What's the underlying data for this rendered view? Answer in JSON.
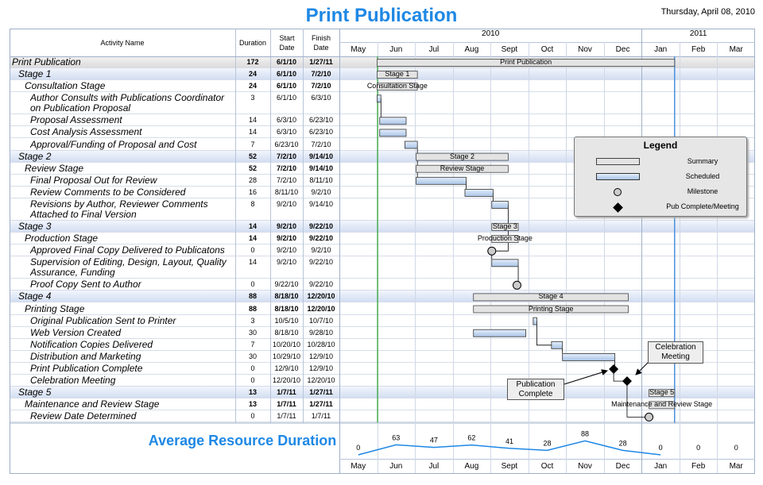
{
  "header": {
    "title": "Print Publication",
    "date": "Thursday, April 08, 2010"
  },
  "columns": {
    "name": "Activity Name",
    "duration": "Duration",
    "start": "Start Date",
    "finish": "Finish Date"
  },
  "timescale": {
    "years": [
      "2010",
      "2011"
    ],
    "months": [
      "May",
      "Jun",
      "Jul",
      "Aug",
      "Sept",
      "Oct",
      "Nov",
      "Dec",
      "Jan",
      "Feb",
      "Mar"
    ]
  },
  "tasks": [
    {
      "name": "Print Publication",
      "duration": 172,
      "start": "6/1/10",
      "finish": "1/27/11"
    },
    {
      "name": "Stage 1",
      "duration": 24,
      "start": "6/1/10",
      "finish": "7/2/10"
    },
    {
      "name": "Consultation Stage",
      "duration": 24,
      "start": "6/1/10",
      "finish": "7/2/10"
    },
    {
      "name": "Author Consults with Publications Coordinator on Publication Proposal",
      "duration": 3,
      "start": "6/1/10",
      "finish": "6/3/10"
    },
    {
      "name": "Proposal Assessment",
      "duration": 14,
      "start": "6/3/10",
      "finish": "6/23/10"
    },
    {
      "name": "Cost Analysis Assessment",
      "duration": 14,
      "start": "6/3/10",
      "finish": "6/23/10"
    },
    {
      "name": "Approval/Funding of Proposal and Cost",
      "duration": 7,
      "start": "6/23/10",
      "finish": "7/2/10"
    },
    {
      "name": "Stage 2",
      "duration": 52,
      "start": "7/2/10",
      "finish": "9/14/10"
    },
    {
      "name": "Review Stage",
      "duration": 52,
      "start": "7/2/10",
      "finish": "9/14/10"
    },
    {
      "name": "Final Proposal Out for Review",
      "duration": 28,
      "start": "7/2/10",
      "finish": "8/11/10"
    },
    {
      "name": "Review Comments to be Considered",
      "duration": 16,
      "start": "8/11/10",
      "finish": "9/2/10"
    },
    {
      "name": "Revisions by Author, Reviewer Comments Attached to Final Version",
      "duration": 8,
      "start": "9/2/10",
      "finish": "9/14/10"
    },
    {
      "name": "Stage 3",
      "duration": 14,
      "start": "9/2/10",
      "finish": "9/22/10"
    },
    {
      "name": "Production Stage",
      "duration": 14,
      "start": "9/2/10",
      "finish": "9/22/10"
    },
    {
      "name": "Approved Final Copy Delivered to Publicatons",
      "duration": 0,
      "start": "9/2/10",
      "finish": "9/2/10"
    },
    {
      "name": "Supervision of Editing, Design, Layout, Quality Assurance, Funding",
      "duration": 14,
      "start": "9/2/10",
      "finish": "9/22/10"
    },
    {
      "name": "Proof Copy Sent to Author",
      "duration": 0,
      "start": "9/22/10",
      "finish": "9/22/10"
    },
    {
      "name": "Stage 4",
      "duration": 88,
      "start": "8/18/10",
      "finish": "12/20/10"
    },
    {
      "name": "Printing Stage",
      "duration": 88,
      "start": "8/18/10",
      "finish": "12/20/10"
    },
    {
      "name": "Original Publication Sent to Printer",
      "duration": 3,
      "start": "10/5/10",
      "finish": "10/7/10"
    },
    {
      "name": "Web Version Created",
      "duration": 30,
      "start": "8/18/10",
      "finish": "9/28/10"
    },
    {
      "name": "Notification Copies Delivered",
      "duration": 7,
      "start": "10/20/10",
      "finish": "10/28/10"
    },
    {
      "name": "Distribution and Marketing",
      "duration": 30,
      "start": "10/29/10",
      "finish": "12/9/10"
    },
    {
      "name": "Print Publication Complete",
      "duration": 0,
      "start": "12/9/10",
      "finish": "12/9/10"
    },
    {
      "name": "Celebration Meeting",
      "duration": 0,
      "start": "12/20/10",
      "finish": "12/20/10"
    },
    {
      "name": "Stage 5",
      "duration": 13,
      "start": "1/7/11",
      "finish": "1/27/11"
    },
    {
      "name": "Maintenance and Review Stage",
      "duration": 13,
      "start": "1/7/11",
      "finish": "1/27/11"
    },
    {
      "name": "Review Date Determined",
      "duration": 0,
      "start": "1/7/11",
      "finish": "1/7/11"
    }
  ],
  "legend": {
    "title": "Legend",
    "items": [
      "Summary",
      "Scheduled",
      "Milestone",
      "Pub Complete/Meeting"
    ]
  },
  "callouts": [
    "Celebration Meeting",
    "Publication Complete"
  ],
  "resource": {
    "title": "Average Resource Duration",
    "values": [
      0,
      63,
      47,
      62,
      41,
      28,
      88,
      28,
      0,
      0,
      0
    ]
  }
}
